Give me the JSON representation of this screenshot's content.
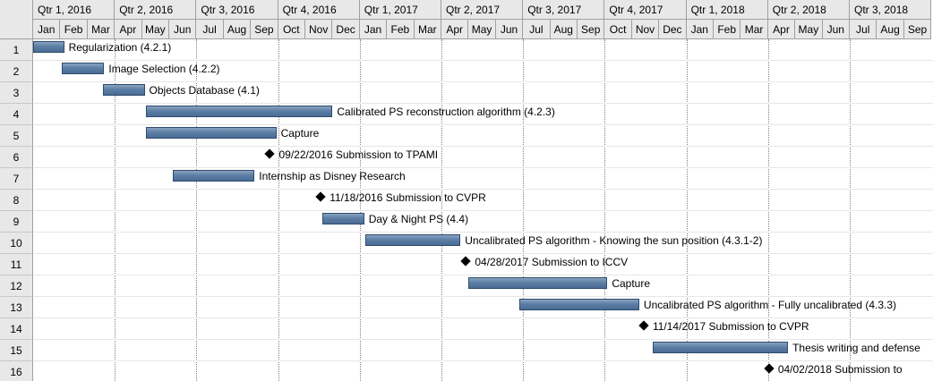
{
  "quarters": [
    "Qtr 1, 2016",
    "Qtr 2, 2016",
    "Qtr 3, 2016",
    "Qtr 4, 2016",
    "Qtr 1, 2017",
    "Qtr 2, 2017",
    "Qtr 3, 2017",
    "Qtr 4, 2017",
    "Qtr 1, 2018",
    "Qtr 2, 2018",
    "Qtr 3, 2018"
  ],
  "months": [
    "Jan",
    "Feb",
    "Mar",
    "Apr",
    "May",
    "Jun",
    "Jul",
    "Aug",
    "Sep",
    "Oct",
    "Nov",
    "Dec",
    "Jan",
    "Feb",
    "Mar",
    "Apr",
    "May",
    "Jun",
    "Jul",
    "Aug",
    "Sep",
    "Oct",
    "Nov",
    "Dec",
    "Jan",
    "Feb",
    "Mar",
    "Apr",
    "May",
    "Jun",
    "Jul",
    "Aug",
    "Sep"
  ],
  "tasks": [
    {
      "id": "1",
      "name": "Regularization (4.2.1)",
      "type": "bar",
      "start": "2016-01-01",
      "end": "2016-02-05"
    },
    {
      "id": "2",
      "name": "Image Selection (4.2.2)",
      "type": "bar",
      "start": "2016-02-03",
      "end": "2016-03-20"
    },
    {
      "id": "3",
      "name": "Objects Database (4.1)",
      "type": "bar",
      "start": "2016-03-19",
      "end": "2016-05-04"
    },
    {
      "id": "4",
      "name": "Calibrated PS reconstruction algorithm (4.2.3)",
      "type": "bar",
      "start": "2016-05-05",
      "end": "2016-12-01"
    },
    {
      "id": "5",
      "name": "Capture",
      "type": "bar",
      "start": "2016-05-05",
      "end": "2016-09-29"
    },
    {
      "id": "6",
      "name": "09/22/2016 Submission to TPAMI",
      "type": "milestone",
      "start": "2016-09-22"
    },
    {
      "id": "7",
      "name": "Internship as Disney Research",
      "type": "bar",
      "start": "2016-06-05",
      "end": "2016-09-05"
    },
    {
      "id": "8",
      "name": "11/18/2016 Submission to CVPR",
      "type": "milestone",
      "start": "2016-11-18"
    },
    {
      "id": "9",
      "name": "Day & Night PS (4.4)",
      "type": "bar",
      "start": "2016-11-20",
      "end": "2017-01-06"
    },
    {
      "id": "10",
      "name": "Uncalibrated PS algorithm - Knowing the sun position (4.3.1-2)",
      "type": "bar",
      "start": "2017-01-07",
      "end": "2017-04-22"
    },
    {
      "id": "11",
      "name": "04/28/2017 Submission to ICCV",
      "type": "milestone",
      "start": "2017-04-28"
    },
    {
      "id": "12",
      "name": "Capture",
      "type": "bar",
      "start": "2017-05-01",
      "end": "2017-10-04"
    },
    {
      "id": "13",
      "name": "Uncalibrated PS algorithm - Fully uncalibrated (4.3.3)",
      "type": "bar",
      "start": "2017-06-27",
      "end": "2017-11-09"
    },
    {
      "id": "14",
      "name": "11/14/2017 Submission to CVPR",
      "type": "milestone",
      "start": "2017-11-14"
    },
    {
      "id": "15",
      "name": "Thesis writing and defense",
      "type": "bar",
      "start": "2017-11-24",
      "end": "2018-04-23"
    },
    {
      "id": "16",
      "name": "04/02/2018 Submission to",
      "type": "milestone",
      "start": "2018-04-02"
    }
  ]
}
